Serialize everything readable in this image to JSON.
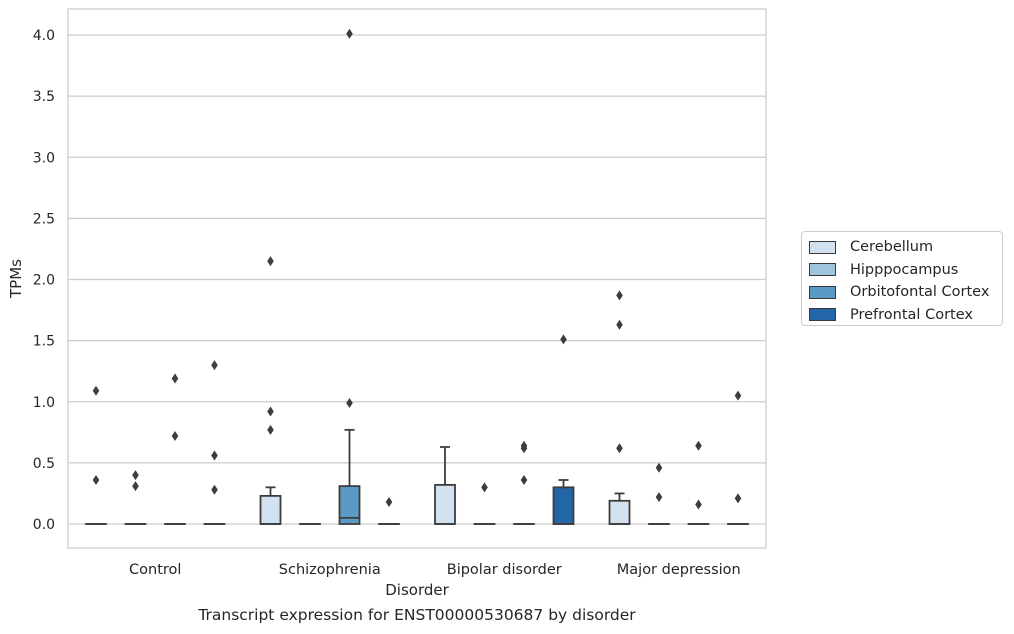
{
  "caption": "Transcript expression for ENST00000530687 by disorder",
  "chart_data": {
    "type": "box",
    "xlabel": "Disorder",
    "ylabel": "TPMs",
    "ylim": [
      -0.2,
      4.22
    ],
    "yticks": [
      "0.0",
      "0.5",
      "1.0",
      "1.5",
      "2.0",
      "2.5",
      "3.0",
      "3.5",
      "4.0"
    ],
    "grid": true,
    "legend_position": "right",
    "categories": [
      "Control",
      "Schizophrenia",
      "Bipolar disorder",
      "Major depression"
    ],
    "series": [
      {
        "name": "Cerebellum",
        "color": "#d1e1f0",
        "boxes": [
          {
            "q1": 0,
            "median": 0,
            "q3": 0,
            "whisker_low": 0,
            "whisker_high": 0,
            "outliers": [
              1.09,
              0.36
            ]
          },
          {
            "q1": 0,
            "median": 0,
            "q3": 0.23,
            "whisker_low": 0,
            "whisker_high": 0.3,
            "outliers": [
              2.15,
              0.92,
              0.77
            ]
          },
          {
            "q1": 0,
            "median": 0,
            "q3": 0.32,
            "whisker_low": 0,
            "whisker_high": 0.63,
            "outliers": []
          },
          {
            "q1": 0,
            "median": 0,
            "q3": 0.19,
            "whisker_low": 0,
            "whisker_high": 0.25,
            "outliers": [
              1.87,
              1.63,
              0.62
            ]
          }
        ]
      },
      {
        "name": "Hipppocampus",
        "color": "#9fc5de",
        "boxes": [
          {
            "q1": 0,
            "median": 0,
            "q3": 0,
            "whisker_low": 0,
            "whisker_high": 0,
            "outliers": [
              0.4,
              0.31
            ]
          },
          {
            "q1": 0,
            "median": 0,
            "q3": 0,
            "whisker_low": 0,
            "whisker_high": 0,
            "outliers": []
          },
          {
            "q1": 0,
            "median": 0,
            "q3": 0,
            "whisker_low": 0,
            "whisker_high": 0,
            "outliers": [
              0.3
            ]
          },
          {
            "q1": 0,
            "median": 0,
            "q3": 0,
            "whisker_low": 0,
            "whisker_high": 0,
            "outliers": [
              0.46,
              0.22
            ]
          }
        ]
      },
      {
        "name": "Orbitofontal Cortex",
        "color": "#5a9ac5",
        "boxes": [
          {
            "q1": 0,
            "median": 0,
            "q3": 0,
            "whisker_low": 0,
            "whisker_high": 0,
            "outliers": [
              1.19,
              0.72
            ]
          },
          {
            "q1": 0,
            "median": 0.05,
            "q3": 0.31,
            "whisker_low": 0,
            "whisker_high": 0.77,
            "outliers": [
              4.01,
              0.99
            ]
          },
          {
            "q1": 0,
            "median": 0,
            "q3": 0,
            "whisker_low": 0,
            "whisker_high": 0,
            "outliers": [
              0.64,
              0.62,
              0.36
            ]
          },
          {
            "q1": 0,
            "median": 0,
            "q3": 0,
            "whisker_low": 0,
            "whisker_high": 0,
            "outliers": [
              0.64,
              0.16
            ]
          }
        ]
      },
      {
        "name": "Prefrontal Cortex",
        "color": "#2266a8",
        "boxes": [
          {
            "q1": 0,
            "median": 0,
            "q3": 0,
            "whisker_low": 0,
            "whisker_high": 0,
            "outliers": [
              1.3,
              0.56,
              0.28
            ]
          },
          {
            "q1": 0,
            "median": 0,
            "q3": 0,
            "whisker_low": 0,
            "whisker_high": 0,
            "outliers": [
              0.18
            ]
          },
          {
            "q1": 0,
            "median": 0,
            "q3": 0.3,
            "whisker_low": 0,
            "whisker_high": 0.36,
            "outliers": [
              1.51
            ]
          },
          {
            "q1": 0,
            "median": 0,
            "q3": 0,
            "whisker_low": 0,
            "whisker_high": 0,
            "outliers": [
              1.05,
              0.21
            ]
          }
        ]
      }
    ]
  }
}
